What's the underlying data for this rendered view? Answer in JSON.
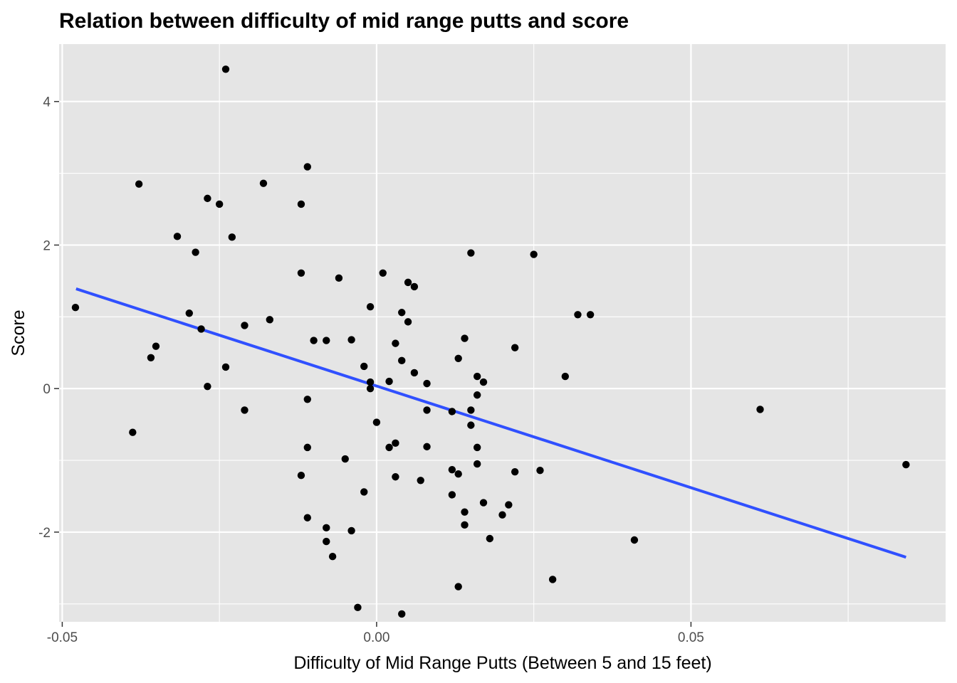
{
  "chart_data": {
    "type": "scatter",
    "title": "Relation between difficulty of mid range putts and score",
    "xlabel": "Difficulty of Mid Range Putts (Between 5 and 15 feet)",
    "ylabel": "Score",
    "xlim": [
      -0.0505,
      0.0905
    ],
    "ylim": [
      -3.25,
      4.8
    ],
    "x_ticks": [
      -0.05,
      0.0,
      0.05
    ],
    "x_tick_labels": [
      "-0.05",
      "0.00",
      "0.05"
    ],
    "y_ticks": [
      -2,
      0,
      2,
      4
    ],
    "y_tick_labels": [
      "-2",
      "0",
      "2",
      "4"
    ],
    "grid": true,
    "colors": {
      "panel": "#e5e5e5",
      "grid": "#ffffff",
      "points": "#000000",
      "fit_line": "#3050ff"
    },
    "fit_line": {
      "x": [
        -0.0478,
        0.0842
      ],
      "y": [
        1.39,
        -2.35
      ]
    },
    "points": [
      {
        "x": -0.0479,
        "y": 1.13
      },
      {
        "x": -0.0378,
        "y": 2.85
      },
      {
        "x": -0.0388,
        "y": -0.61
      },
      {
        "x": -0.0359,
        "y": 0.43
      },
      {
        "x": -0.0351,
        "y": 0.59
      },
      {
        "x": -0.0317,
        "y": 2.12
      },
      {
        "x": -0.0298,
        "y": 1.05
      },
      {
        "x": -0.0288,
        "y": 1.9
      },
      {
        "x": -0.0279,
        "y": 0.83
      },
      {
        "x": -0.0269,
        "y": 2.65
      },
      {
        "x": -0.0269,
        "y": 0.03
      },
      {
        "x": -0.025,
        "y": 2.57
      },
      {
        "x": -0.024,
        "y": 4.45
      },
      {
        "x": -0.024,
        "y": 0.3
      },
      {
        "x": -0.023,
        "y": 2.11
      },
      {
        "x": -0.021,
        "y": 0.88
      },
      {
        "x": -0.021,
        "y": -0.3
      },
      {
        "x": -0.018,
        "y": 2.86
      },
      {
        "x": -0.017,
        "y": 0.96
      },
      {
        "x": -0.012,
        "y": 2.57
      },
      {
        "x": -0.012,
        "y": 1.61
      },
      {
        "x": -0.012,
        "y": -1.21
      },
      {
        "x": -0.011,
        "y": 3.09
      },
      {
        "x": -0.011,
        "y": -0.15
      },
      {
        "x": -0.011,
        "y": -0.82
      },
      {
        "x": -0.011,
        "y": -1.8
      },
      {
        "x": -0.01,
        "y": 0.67
      },
      {
        "x": -0.008,
        "y": 0.67
      },
      {
        "x": -0.008,
        "y": -1.94
      },
      {
        "x": -0.008,
        "y": -2.13
      },
      {
        "x": -0.007,
        "y": -2.34
      },
      {
        "x": -0.006,
        "y": 1.54
      },
      {
        "x": -0.005,
        "y": -0.98
      },
      {
        "x": -0.004,
        "y": 0.68
      },
      {
        "x": -0.004,
        "y": -1.98
      },
      {
        "x": -0.003,
        "y": -3.05
      },
      {
        "x": -0.002,
        "y": 0.31
      },
      {
        "x": -0.002,
        "y": -1.44
      },
      {
        "x": -0.001,
        "y": 1.14
      },
      {
        "x": -0.001,
        "y": 0.09
      },
      {
        "x": -0.001,
        "y": 0.0
      },
      {
        "x": 0.0,
        "y": -0.47
      },
      {
        "x": 0.001,
        "y": 1.61
      },
      {
        "x": 0.002,
        "y": 0.1
      },
      {
        "x": 0.002,
        "y": -0.82
      },
      {
        "x": 0.003,
        "y": 0.63
      },
      {
        "x": 0.003,
        "y": -0.76
      },
      {
        "x": 0.003,
        "y": -1.23
      },
      {
        "x": 0.004,
        "y": 1.06
      },
      {
        "x": 0.004,
        "y": 0.39
      },
      {
        "x": 0.004,
        "y": -3.14
      },
      {
        "x": 0.005,
        "y": 1.48
      },
      {
        "x": 0.005,
        "y": 0.93
      },
      {
        "x": 0.006,
        "y": 1.42
      },
      {
        "x": 0.006,
        "y": 0.22
      },
      {
        "x": 0.007,
        "y": -1.28
      },
      {
        "x": 0.008,
        "y": 0.07
      },
      {
        "x": 0.008,
        "y": -0.3
      },
      {
        "x": 0.008,
        "y": -0.81
      },
      {
        "x": 0.012,
        "y": -0.32
      },
      {
        "x": 0.012,
        "y": -1.13
      },
      {
        "x": 0.012,
        "y": -1.48
      },
      {
        "x": 0.013,
        "y": 0.42
      },
      {
        "x": 0.013,
        "y": -1.19
      },
      {
        "x": 0.013,
        "y": -2.76
      },
      {
        "x": 0.014,
        "y": 0.7
      },
      {
        "x": 0.014,
        "y": -1.72
      },
      {
        "x": 0.014,
        "y": -1.9
      },
      {
        "x": 0.015,
        "y": 1.89
      },
      {
        "x": 0.015,
        "y": -0.3
      },
      {
        "x": 0.015,
        "y": -0.51
      },
      {
        "x": 0.016,
        "y": 0.17
      },
      {
        "x": 0.016,
        "y": -0.09
      },
      {
        "x": 0.016,
        "y": -0.82
      },
      {
        "x": 0.016,
        "y": -1.05
      },
      {
        "x": 0.017,
        "y": 0.09
      },
      {
        "x": 0.017,
        "y": -1.59
      },
      {
        "x": 0.018,
        "y": -2.09
      },
      {
        "x": 0.02,
        "y": -1.76
      },
      {
        "x": 0.021,
        "y": -1.62
      },
      {
        "x": 0.022,
        "y": 0.57
      },
      {
        "x": 0.022,
        "y": -1.16
      },
      {
        "x": 0.025,
        "y": 1.87
      },
      {
        "x": 0.026,
        "y": -1.14
      },
      {
        "x": 0.028,
        "y": -2.66
      },
      {
        "x": 0.03,
        "y": 0.17
      },
      {
        "x": 0.032,
        "y": 1.03
      },
      {
        "x": 0.034,
        "y": 1.03
      },
      {
        "x": 0.041,
        "y": -2.11
      },
      {
        "x": 0.061,
        "y": -0.29
      },
      {
        "x": 0.0842,
        "y": -1.06
      }
    ]
  }
}
